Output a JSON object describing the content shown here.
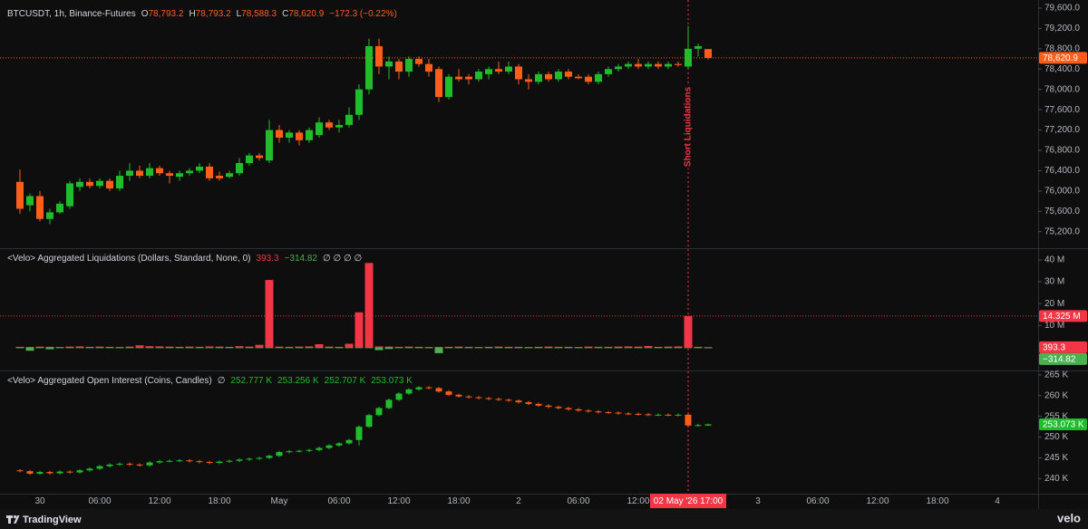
{
  "x_axis": {
    "crosshair": "02 May '26 17:00",
    "categories": [
      null,
      null,
      "30",
      null,
      null,
      null,
      null,
      null,
      "06:00",
      null,
      null,
      null,
      null,
      null,
      "12:00",
      null,
      null,
      null,
      null,
      null,
      "18:00",
      null,
      null,
      null,
      null,
      null,
      "May",
      null,
      null,
      null,
      null,
      null,
      "06:00",
      null,
      null,
      null,
      null,
      null,
      "12:00",
      null,
      null,
      null,
      null,
      null,
      "18:00",
      null,
      null,
      null,
      null,
      null,
      "2",
      null,
      null,
      null,
      null,
      null,
      "06:00",
      null,
      null,
      null,
      null,
      null,
      "12:00",
      null,
      null,
      null,
      null,
      "02 May '26 17:00",
      null,
      null,
      null,
      null,
      null,
      null,
      "3",
      null,
      null,
      null,
      null,
      null,
      "06:00",
      null,
      null,
      null,
      null,
      null,
      "12:00",
      null,
      null,
      null,
      null,
      null,
      "18:00",
      null,
      null,
      null,
      null,
      null,
      "4",
      null,
      null,
      null,
      null
    ]
  },
  "chart_data": [
    {
      "type": "candlestick",
      "legend": {
        "title": "BTCUSDT, 1h, Binance-Futures",
        "color": "#ff5d1a",
        "readouts": [
          {
            "key": "O",
            "text": "78,793.2"
          },
          {
            "key": "H",
            "text": "78,793.2"
          },
          {
            "key": "L",
            "text": "78,588.3"
          },
          {
            "key": "C",
            "text": "78,620.9"
          }
        ],
        "suffix": "−172.3 (−0.22%)"
      },
      "annotation": "Short Liquidations",
      "up_color": "#1fbd2b",
      "down_color": "#ff5d1a",
      "ylim": [
        74910,
        79724
      ],
      "yticks": [
        {
          "value": 75200,
          "label": "75,200.0"
        },
        {
          "value": 75600,
          "label": "75,600.0"
        },
        {
          "value": 76000,
          "label": "76,000.0"
        },
        {
          "value": 76400,
          "label": "76,400.0"
        },
        {
          "value": 76800,
          "label": "76,800.0"
        },
        {
          "value": 77200,
          "label": "77,200.0"
        },
        {
          "value": 77600,
          "label": "77,600.0"
        },
        {
          "value": 78000,
          "label": "78,000.0"
        },
        {
          "value": 78400,
          "label": "78,400.0"
        },
        {
          "value": 78800,
          "label": "78,800.0"
        },
        {
          "value": 79200,
          "label": "79,200.0"
        },
        {
          "value": 79600,
          "label": "79,600.0"
        }
      ],
      "badges": [
        {
          "label": "78,620.9",
          "value": 78620.9,
          "color": "#ff5d1a",
          "line": true
        }
      ],
      "open": [
        76180,
        75720,
        75900,
        75450,
        75580,
        75700,
        76080,
        76180,
        76100,
        76200,
        76050,
        76300,
        76400,
        76300,
        76450,
        76350,
        76280,
        76350,
        76400,
        76480,
        76300,
        76280,
        76350,
        76550,
        76700,
        76600,
        77200,
        77050,
        77150,
        77000,
        77100,
        77350,
        77250,
        77300,
        77500,
        78000,
        78850,
        78450,
        78550,
        78350,
        78600,
        78500,
        78400,
        77850,
        78250,
        78250,
        78200,
        78300,
        78400,
        78350,
        78450,
        78200,
        78150,
        78300,
        78200,
        78350,
        78250,
        78250,
        78150,
        78300,
        78400,
        78450,
        78500,
        78450,
        78500,
        78450,
        78500,
        78450,
        78800,
        78793.2
      ],
      "high": [
        76420,
        75950,
        76000,
        75650,
        75800,
        76200,
        76250,
        76250,
        76250,
        76250,
        76400,
        76550,
        76500,
        76550,
        76500,
        76400,
        76400,
        76450,
        76550,
        76550,
        76380,
        76400,
        76650,
        76750,
        76750,
        77400,
        77300,
        77200,
        77200,
        77250,
        77450,
        77400,
        77400,
        77650,
        78100,
        79000,
        79000,
        78650,
        78600,
        78650,
        78650,
        78600,
        78450,
        78300,
        78400,
        78300,
        78400,
        78450,
        78550,
        78550,
        78500,
        78300,
        78350,
        78350,
        78400,
        78400,
        78300,
        78300,
        78350,
        78450,
        78500,
        78550,
        78600,
        78550,
        78550,
        78550,
        78550,
        79250,
        78900,
        78793.2
      ],
      "low": [
        75550,
        75600,
        75400,
        75350,
        75550,
        75650,
        76000,
        76050,
        76050,
        76000,
        76000,
        76200,
        76250,
        76250,
        76300,
        76150,
        76200,
        76300,
        76350,
        76200,
        76200,
        76250,
        76300,
        76500,
        76600,
        76550,
        76950,
        76950,
        76900,
        76950,
        77050,
        77200,
        77150,
        77250,
        77400,
        77900,
        78300,
        78200,
        78200,
        78250,
        78450,
        78250,
        77750,
        77800,
        78150,
        78100,
        78150,
        78200,
        78300,
        78300,
        78100,
        78000,
        78100,
        78150,
        78150,
        78200,
        78200,
        78100,
        78100,
        78250,
        78350,
        78400,
        78400,
        78400,
        78400,
        78400,
        78450,
        78400,
        78650,
        78588.3
      ],
      "close": [
        75650,
        75900,
        75450,
        75580,
        75750,
        76150,
        76180,
        76100,
        76200,
        76050,
        76300,
        76400,
        76300,
        76450,
        76350,
        76300,
        76350,
        76400,
        76480,
        76250,
        76250,
        76350,
        76550,
        76700,
        76650,
        77200,
        77050,
        77150,
        77000,
        77200,
        77350,
        77250,
        77300,
        77500,
        78000,
        78850,
        78450,
        78550,
        78350,
        78600,
        78500,
        78350,
        77850,
        78250,
        78200,
        78200,
        78350,
        78400,
        78350,
        78450,
        78200,
        78150,
        78300,
        78200,
        78350,
        78250,
        78220,
        78150,
        78300,
        78400,
        78450,
        78500,
        78450,
        78500,
        78450,
        78500,
        78480,
        78800,
        78850,
        78620.9
      ]
    },
    {
      "type": "bar",
      "legend": {
        "title": "<Velo> Aggregated Liquidations (Dollars, Standard, None, 0)",
        "readouts": [
          {
            "text": "393.3",
            "color": "#f23645"
          },
          {
            "text": "−314.82",
            "color": "#4caf50"
          }
        ],
        "suffix": "∅ ∅ ∅ ∅"
      },
      "ylim": [
        -9.8,
        43.7
      ],
      "yticks": [
        {
          "value": 10,
          "label": "10 M"
        },
        {
          "value": 20,
          "label": "20 M"
        },
        {
          "value": 30,
          "label": "30 M"
        },
        {
          "value": 40,
          "label": "40 M"
        }
      ],
      "badges": [
        {
          "label": "14.325 M",
          "value": 14.325,
          "color": "#f23645",
          "line": true
        },
        {
          "label": "393.3",
          "value": 0.0003933,
          "color": "#f23645"
        },
        {
          "label": "−314.82",
          "value": -0.00031482,
          "color": "#4caf50"
        }
      ],
      "series": [
        {
          "color": "#f23645",
          "values": [
            0.2,
            0.1,
            0.3,
            0.2,
            0.1,
            0.3,
            0.4,
            0.2,
            0.3,
            0.2,
            0.1,
            0.3,
            0.9,
            0.5,
            0.4,
            0.3,
            0.2,
            0.3,
            0.2,
            0.4,
            0.3,
            0.2,
            0.5,
            0.3,
            1.1,
            30.8,
            0.3,
            0.2,
            0.3,
            0.4,
            1.4,
            0.3,
            0.2,
            1.6,
            16,
            38.6,
            0.4,
            0.3,
            0.2,
            0.3,
            0.2,
            0.1,
            0.1,
            0.2,
            0.3,
            0.2,
            0.1,
            0.2,
            0.3,
            0.2,
            0.2,
            0.1,
            0.2,
            0.3,
            0.2,
            0.2,
            0.1,
            0.3,
            0.2,
            0.2,
            0.3,
            0.4,
            0.3,
            0.6,
            0.2,
            0.3,
            0.4,
            14.325,
            0.2,
            0.0003933
          ]
        },
        {
          "color": "#4caf50",
          "values": [
            -0.3,
            -1.6,
            -0.4,
            -0.9,
            -0.3,
            -0.2,
            -0.3,
            -0.4,
            -0.2,
            -0.1,
            -0.3,
            -0.2,
            -0.2,
            -0.3,
            -0.2,
            -0.4,
            -0.2,
            -0.1,
            -0.2,
            -0.3,
            -0.2,
            -0.1,
            -0.2,
            -0.2,
            -0.1,
            -0.2,
            -0.3,
            -0.2,
            -0.1,
            -0.2,
            -0.1,
            -0.2,
            -0.1,
            -0.2,
            -0.1,
            -0.2,
            -1.3,
            -0.8,
            -0.4,
            -0.3,
            -0.2,
            -0.3,
            -2.7,
            -0.4,
            -0.2,
            -0.3,
            -0.2,
            -0.3,
            -0.2,
            -0.2,
            -0.3,
            -0.2,
            -0.2,
            -0.1,
            -0.2,
            -0.3,
            -0.2,
            -0.2,
            -0.1,
            -0.2,
            -0.1,
            -0.2,
            -0.1,
            -0.2,
            -0.2,
            -0.1,
            -0.2,
            -0.1,
            -0.2,
            -0.00031482
          ]
        }
      ]
    },
    {
      "type": "candlestick",
      "legend": {
        "title": "<Velo> Aggregated Open Interest (Coins, Candles)",
        "prefix": "∅",
        "color": "#1fbd2b",
        "readouts": [
          {
            "text": "252.777 K"
          },
          {
            "text": "253.256 K"
          },
          {
            "text": "252.707 K"
          },
          {
            "text": "253.073 K"
          }
        ]
      },
      "up_color": "#1fbd2b",
      "down_color": "#ff5d1a",
      "ylim": [
        236.6,
        265.4
      ],
      "yticks": [
        {
          "value": 240,
          "label": "240 K"
        },
        {
          "value": 245,
          "label": "245 K"
        },
        {
          "value": 250,
          "label": "250 K"
        },
        {
          "value": 255,
          "label": "255 K"
        },
        {
          "value": 260,
          "label": "260 K"
        },
        {
          "value": 265,
          "label": "265 K"
        }
      ],
      "badges": [
        {
          "label": "253.073 K",
          "value": 253.073,
          "color": "#1fbd2b"
        }
      ],
      "open": [
        242.0,
        241.8,
        241.2,
        241.6,
        241.3,
        241.7,
        241.5,
        242.0,
        242.4,
        243.0,
        243.4,
        243.6,
        243.4,
        243.2,
        243.9,
        244.2,
        244.3,
        244.4,
        244.2,
        244.0,
        243.8,
        244.1,
        244.3,
        244.6,
        244.8,
        245.0,
        245.5,
        246.4,
        246.6,
        246.7,
        246.9,
        247.4,
        248.0,
        248.5,
        249.3,
        252.5,
        255.3,
        257.0,
        259.0,
        260.5,
        261.5,
        262.0,
        261.8,
        261.0,
        260.2,
        259.8,
        259.6,
        259.4,
        259.2,
        259.0,
        258.8,
        258.4,
        258.0,
        257.6,
        257.3,
        257.0,
        256.7,
        256.4,
        256.2,
        256.0,
        255.9,
        255.7,
        255.6,
        255.5,
        255.4,
        255.4,
        255.3,
        255.4,
        252.8,
        252.777
      ],
      "high": [
        242.3,
        242.1,
        241.9,
        241.9,
        242.0,
        242.0,
        242.3,
        242.7,
        243.3,
        243.7,
        243.9,
        243.9,
        243.7,
        244.2,
        244.5,
        244.6,
        244.7,
        244.7,
        244.5,
        244.3,
        244.4,
        244.6,
        244.9,
        245.1,
        245.3,
        245.8,
        246.7,
        246.9,
        247.0,
        247.2,
        247.7,
        248.3,
        248.8,
        249.6,
        252.8,
        255.6,
        257.3,
        259.3,
        260.8,
        261.8,
        262.3,
        262.3,
        262.1,
        261.3,
        260.5,
        260.1,
        259.9,
        259.7,
        259.5,
        259.3,
        259.1,
        258.7,
        258.3,
        257.9,
        257.6,
        257.3,
        257.0,
        256.7,
        256.5,
        256.3,
        256.2,
        256.0,
        255.9,
        255.8,
        255.7,
        255.7,
        255.7,
        255.7,
        253.2,
        253.256
      ],
      "low": [
        241.5,
        240.9,
        240.9,
        241.0,
        241.0,
        241.2,
        241.2,
        241.7,
        242.1,
        242.7,
        243.1,
        243.1,
        242.9,
        242.9,
        243.6,
        243.9,
        244.0,
        243.9,
        243.7,
        243.5,
        243.5,
        243.8,
        244.0,
        244.3,
        244.5,
        244.7,
        245.2,
        246.1,
        246.3,
        246.4,
        246.6,
        247.1,
        247.7,
        248.2,
        248.0,
        252.2,
        255.0,
        256.7,
        258.7,
        260.2,
        261.2,
        261.5,
        260.7,
        259.9,
        259.5,
        259.3,
        259.1,
        258.9,
        258.7,
        258.5,
        258.1,
        257.7,
        257.3,
        257.0,
        256.7,
        256.4,
        256.1,
        255.9,
        255.7,
        255.6,
        255.4,
        255.3,
        255.2,
        255.1,
        255.1,
        255.0,
        255.0,
        252.5,
        252.5,
        252.707
      ],
      "close": [
        241.8,
        241.2,
        241.6,
        241.3,
        241.7,
        241.5,
        242.0,
        242.4,
        243.0,
        243.4,
        243.6,
        243.4,
        243.2,
        243.9,
        244.2,
        244.3,
        244.4,
        244.2,
        244.0,
        243.8,
        244.1,
        244.3,
        244.6,
        244.8,
        245.0,
        245.5,
        246.4,
        246.6,
        246.7,
        246.9,
        247.4,
        248.0,
        248.5,
        249.3,
        252.5,
        255.3,
        257.0,
        259.0,
        260.5,
        261.5,
        262.0,
        261.8,
        261.0,
        260.2,
        259.8,
        259.6,
        259.4,
        259.2,
        259.0,
        258.8,
        258.4,
        258.0,
        257.6,
        257.3,
        257.0,
        256.7,
        256.4,
        256.2,
        256.0,
        255.9,
        255.7,
        255.6,
        255.5,
        255.4,
        255.4,
        255.3,
        255.4,
        252.8,
        252.9,
        253.073
      ]
    }
  ],
  "footer": {
    "brand": "TradingView",
    "source": "velo"
  }
}
